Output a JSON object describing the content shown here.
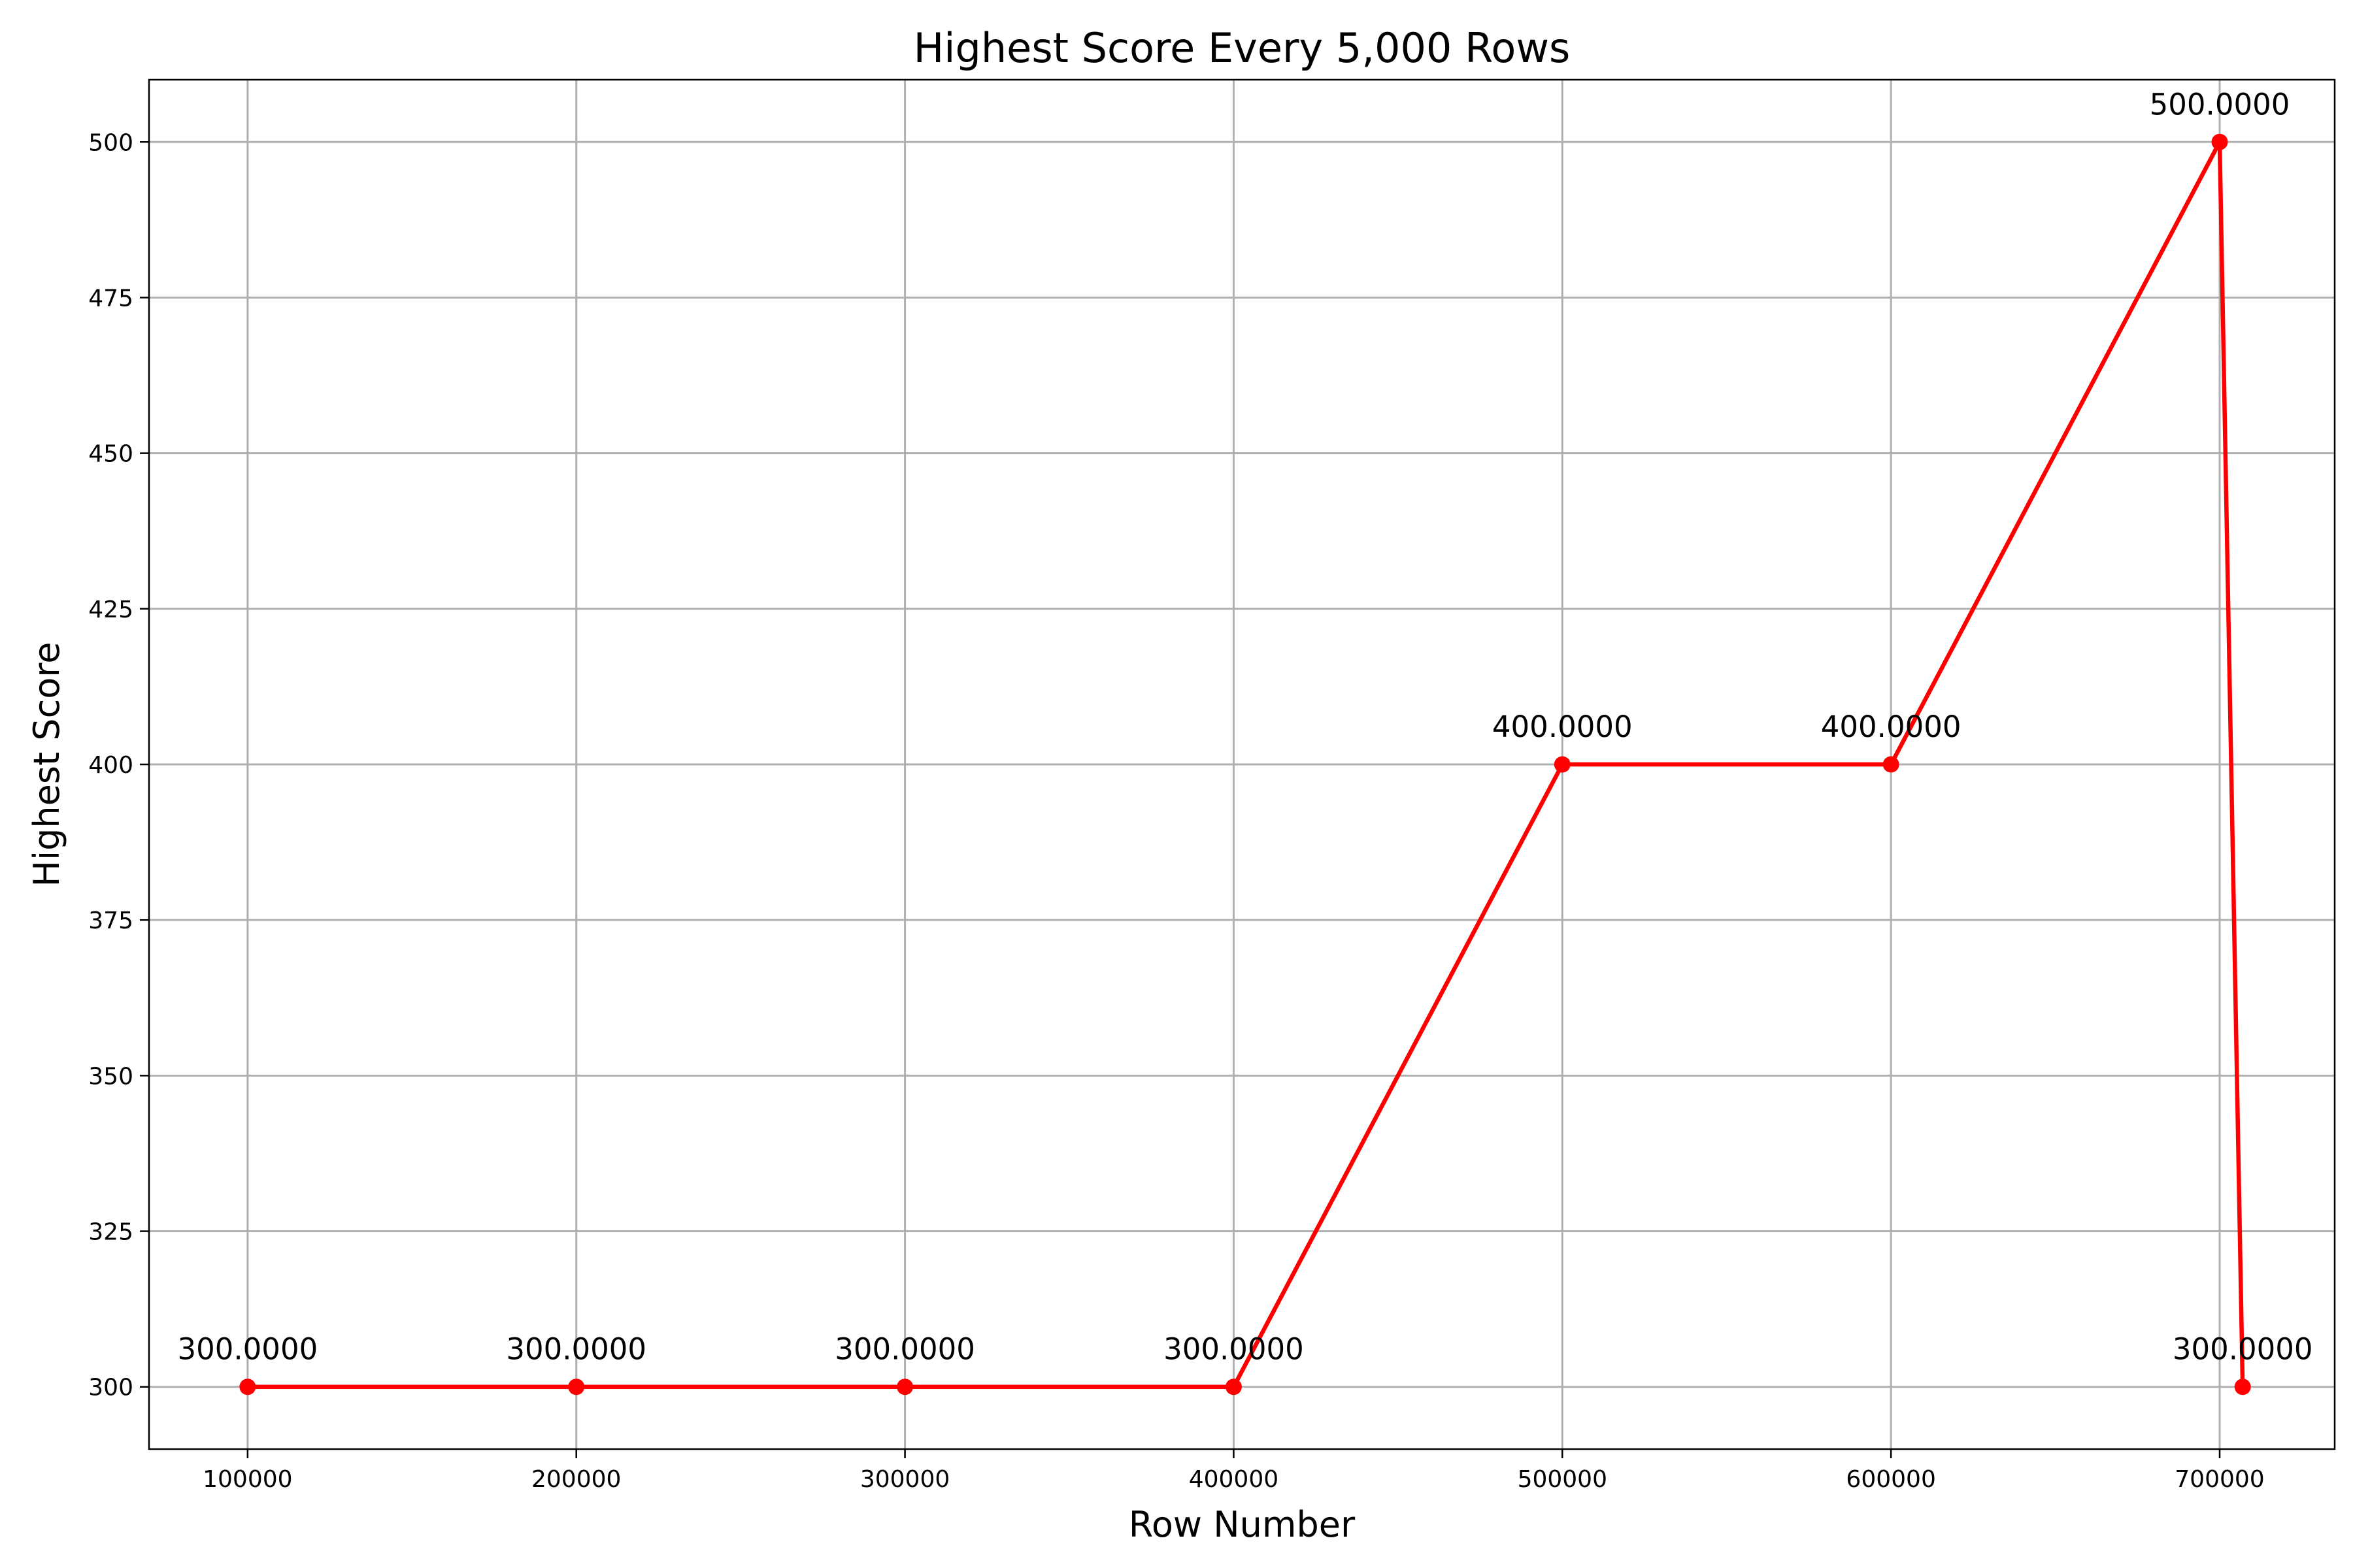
{
  "chart_data": {
    "type": "line",
    "title": "Highest Score Every 5,000 Rows",
    "xlabel": "Row Number",
    "ylabel": "Highest Score",
    "grid": true,
    "xlim": [
      70000,
      735000
    ],
    "ylim": [
      290,
      510
    ],
    "xticks": [
      100000,
      200000,
      300000,
      400000,
      500000,
      600000,
      700000
    ],
    "yticks": [
      300,
      325,
      350,
      375,
      400,
      425,
      450,
      475,
      500
    ],
    "series": [
      {
        "color": "#ff0000",
        "marker": "circle",
        "x": [
          100000,
          200000,
          300000,
          400000,
          500000,
          600000,
          700000,
          707000
        ],
        "y": [
          300,
          300,
          300,
          300,
          400,
          400,
          500,
          300
        ],
        "labels": [
          "300.0000",
          "300.0000",
          "300.0000",
          "300.0000",
          "400.0000",
          "400.0000",
          "500.0000",
          "300.0000"
        ]
      }
    ]
  }
}
